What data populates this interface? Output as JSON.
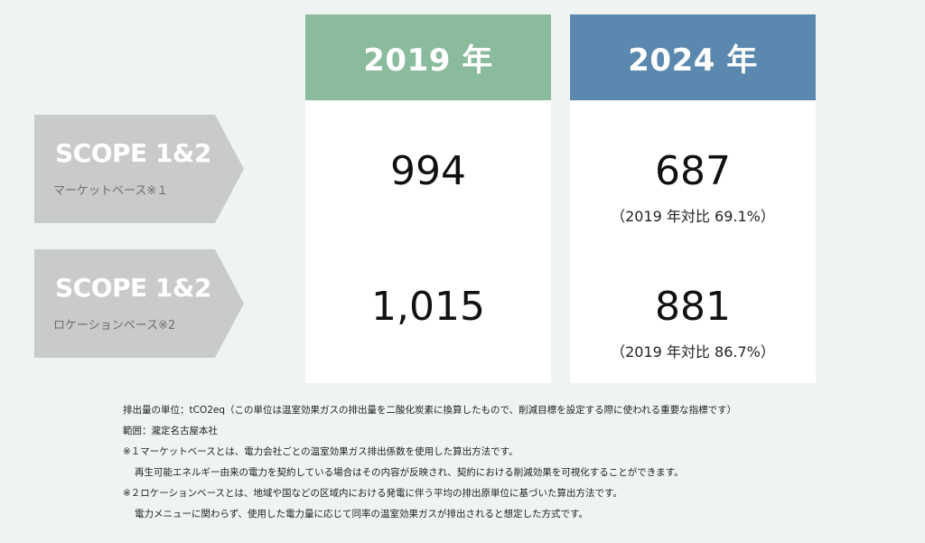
{
  "chart_data": {
    "type": "table",
    "columns": [
      "2019 年",
      "2024 年"
    ],
    "rows": [
      {
        "label": "SCOPE 1&2",
        "basis": "マーケットベース※１",
        "values": [
          "994",
          "687"
        ],
        "ratio_2024": "（2019 年対比 69.1%）"
      },
      {
        "label": "SCOPE 1&2",
        "basis": "ロケーションベース※2",
        "values": [
          "1,015",
          "881"
        ],
        "ratio_2024": "（2019 年対比 86.7%）"
      }
    ]
  },
  "colors": {
    "header_2019": "#8bbb9d",
    "header_2024": "#5a88ae",
    "row_label_bg": "#c9cbca",
    "page_bg": "#eff4f3"
  },
  "notes": [
    "排出量の単位：tCO2eq（この単位は温室効果ガスの排出量を二酸化炭素に換算したもので、削減目標を設定する際に使われる重要な指標です）",
    "範囲：瀧定名古屋本社",
    "※１マーケットベースとは、電力会社ごとの温室効果ガス排出係数を使用した算出方法です。",
    "再生可能エネルギー由来の電力を契約している場合はその内容が反映され、契約における削減効果を可視化することができます。",
    "※２ロケーションベースとは、地域や国などの区域内における発電に伴う平均の排出原単位に基づいた算出方法です。",
    "電力メニューに関わらず、使用した電力量に応じて同率の温室効果ガスが排出されると想定した方式です。"
  ]
}
